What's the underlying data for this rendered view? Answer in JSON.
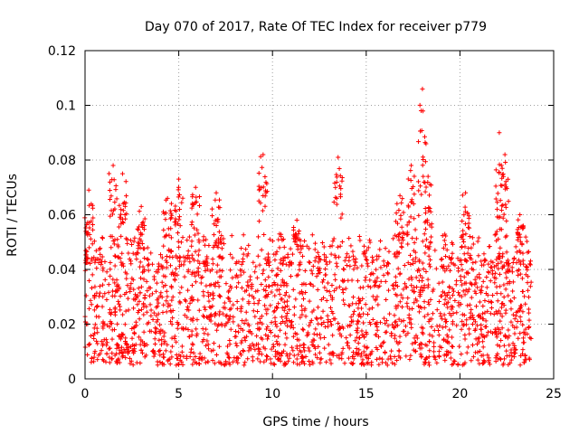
{
  "chart_data": {
    "type": "scatter",
    "title": "Day 070 of 2017, Rate Of TEC Index for receiver p779",
    "xlabel": "GPS time / hours",
    "ylabel": "ROTI / TECUs",
    "xlim": [
      0,
      25
    ],
    "ylim": [
      0,
      0.12
    ],
    "xticks": [
      0,
      5,
      10,
      15,
      20,
      25
    ],
    "xtick_labels": [
      "0",
      "5",
      "10",
      "15",
      "20",
      "25"
    ],
    "yticks": [
      0,
      0.02,
      0.04,
      0.06,
      0.08,
      0.1,
      0.12
    ],
    "ytick_labels": [
      "0",
      "0.02",
      "0.04",
      "0.06",
      "0.08",
      "0.1",
      "0.12"
    ],
    "grid": true,
    "marker": "plus",
    "series": [
      {
        "name": "ROTI",
        "color": "#ff0000",
        "x_range": [
          0,
          23.8
        ],
        "baseline_range": [
          0.005,
          0.045
        ],
        "typical_max": 0.045,
        "peaks": [
          {
            "x": 0.2,
            "y": 0.069
          },
          {
            "x": 1.5,
            "y": 0.078
          },
          {
            "x": 2.0,
            "y": 0.075
          },
          {
            "x": 3.0,
            "y": 0.063
          },
          {
            "x": 4.4,
            "y": 0.066
          },
          {
            "x": 5.0,
            "y": 0.073
          },
          {
            "x": 5.9,
            "y": 0.07
          },
          {
            "x": 7.0,
            "y": 0.068
          },
          {
            "x": 9.5,
            "y": 0.082
          },
          {
            "x": 11.3,
            "y": 0.058
          },
          {
            "x": 13.5,
            "y": 0.081
          },
          {
            "x": 16.8,
            "y": 0.067
          },
          {
            "x": 17.4,
            "y": 0.078
          },
          {
            "x": 18.0,
            "y": 0.106
          },
          {
            "x": 18.3,
            "y": 0.074
          },
          {
            "x": 20.3,
            "y": 0.068
          },
          {
            "x": 22.1,
            "y": 0.09
          },
          {
            "x": 22.4,
            "y": 0.082
          },
          {
            "x": 23.2,
            "y": 0.06
          }
        ]
      }
    ]
  }
}
